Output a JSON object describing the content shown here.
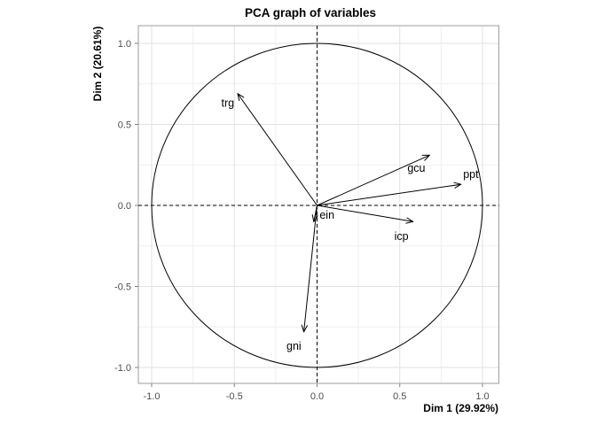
{
  "title": "PCA graph of variables",
  "axes": {
    "x_label": "Dim 1 (29.92%)",
    "y_label": "Dim 2 (20.61%)",
    "x_ticks": [
      "-1.0",
      "-0.5",
      "0.0",
      "0.5",
      "1.0"
    ],
    "y_ticks": [
      "-1.0",
      "-0.5",
      "0.0",
      "0.5",
      "1.0"
    ]
  },
  "chart_data": {
    "type": "scatter",
    "subtype": "pca-variable-correlation-circle",
    "title": "PCA graph of variables",
    "xlabel": "Dim 1 (29.92%)",
    "ylabel": "Dim 2 (20.61%)",
    "xlim": [
      -1.1,
      1.1
    ],
    "ylim": [
      -1.1,
      1.1
    ],
    "grid": true,
    "legend": "none",
    "unit_circle": true,
    "reference_lines": {
      "h": 0.0,
      "v": 0.0,
      "style": "dashed"
    },
    "variables": [
      {
        "name": "trg",
        "x": -0.48,
        "y": 0.69,
        "label_pos": [
          -0.54,
          0.63
        ]
      },
      {
        "name": "gcu",
        "x": 0.68,
        "y": 0.31,
        "label_pos": [
          0.6,
          0.23
        ]
      },
      {
        "name": "ppt",
        "x": 0.87,
        "y": 0.13,
        "label_pos": [
          0.93,
          0.19
        ]
      },
      {
        "name": "icp",
        "x": 0.58,
        "y": -0.1,
        "label_pos": [
          0.51,
          -0.19
        ]
      },
      {
        "name": "ein",
        "x": -0.02,
        "y": -0.1,
        "label_pos": [
          0.06,
          -0.06
        ]
      },
      {
        "name": "gni",
        "x": -0.08,
        "y": -0.78,
        "label_pos": [
          -0.14,
          -0.87
        ]
      }
    ]
  },
  "colors": {
    "background": "#ffffff",
    "arrow": "#000000",
    "circle": "#000000",
    "reference_line": "#000000",
    "grid_major": "#e2e2e2",
    "grid_minor": "#efefef",
    "panel_border": "#9e9e9e",
    "tick": "#808080",
    "tick_label": "#4d4d4d",
    "text": "#000000"
  }
}
